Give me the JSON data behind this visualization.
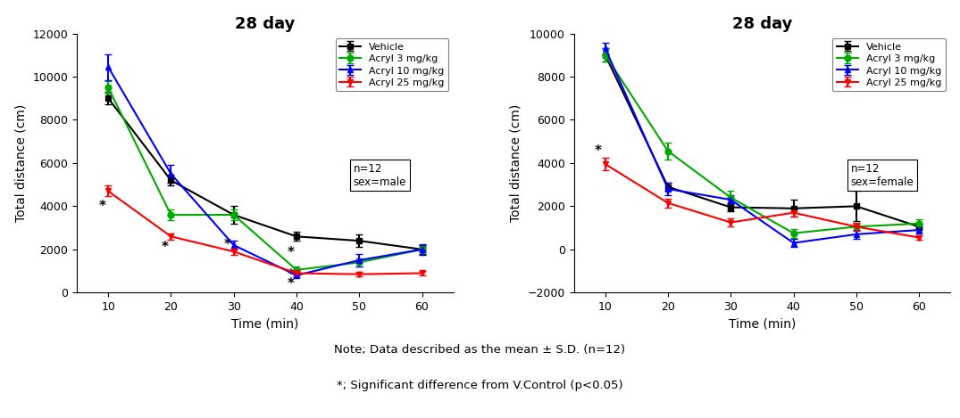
{
  "time": [
    10,
    20,
    30,
    40,
    50,
    60
  ],
  "male": {
    "vehicle": {
      "y": [
        9000,
        5200,
        3600,
        2600,
        2400,
        2000
      ],
      "yerr": [
        300,
        250,
        400,
        200,
        300,
        200
      ]
    },
    "acryl3": {
      "y": [
        9500,
        3600,
        3600,
        1050,
        1400,
        2000
      ],
      "yerr": [
        300,
        250,
        250,
        150,
        200,
        150
      ]
    },
    "acryl10": {
      "y": [
        10450,
        5500,
        2200,
        800,
        1500,
        2000
      ],
      "yerr": [
        600,
        400,
        200,
        100,
        300,
        250
      ]
    },
    "acryl25": {
      "y": [
        4700,
        2600,
        1900,
        900,
        850,
        900
      ],
      "yerr": [
        250,
        150,
        150,
        100,
        100,
        100
      ]
    }
  },
  "female": {
    "vehicle": {
      "y": [
        9000,
        2900,
        1950,
        1900,
        2000,
        1050
      ],
      "yerr": [
        300,
        200,
        200,
        400,
        700,
        150
      ]
    },
    "acryl3": {
      "y": [
        9000,
        4550,
        2400,
        750,
        1050,
        1200
      ],
      "yerr": [
        300,
        400,
        300,
        200,
        150,
        200
      ]
    },
    "acryl10": {
      "y": [
        9300,
        2800,
        2300,
        300,
        700,
        900
      ],
      "yerr": [
        250,
        300,
        200,
        200,
        200,
        150
      ]
    },
    "acryl25": {
      "y": [
        3950,
        2150,
        1250,
        1700,
        1050,
        550
      ],
      "yerr": [
        300,
        200,
        200,
        200,
        200,
        100
      ]
    }
  },
  "colors": {
    "vehicle": "#000000",
    "acryl3": "#00aa00",
    "acryl10": "#0000ff",
    "acryl25": "#ff0000"
  },
  "markers": {
    "vehicle": "s",
    "acryl3": "o",
    "acryl10": "^",
    "acryl25": "v"
  },
  "labels": {
    "vehicle": "Vehicle",
    "acryl3": "Acryl 3 mg/kg",
    "acryl10": "Acryl 10 mg/kg",
    "acryl25": "Acryl 25 mg/kg"
  },
  "male_ylim": [
    0,
    12000
  ],
  "female_ylim": [
    -2000,
    10000
  ],
  "male_yticks": [
    0,
    2000,
    4000,
    6000,
    8000,
    10000,
    12000
  ],
  "female_yticks": [
    -2000,
    0,
    2000,
    4000,
    6000,
    8000,
    10000
  ],
  "xlabel": "Time (min)",
  "ylabel": "Total distance (cm)",
  "title": "28 day",
  "male_note": "n=12\nsex=male",
  "female_note": "n=12\nsex=female",
  "footnote1": "Note; Data described as the mean ± S.D. (n=12)",
  "footnote2": "*; Significant difference from V.Control (p<0.05)"
}
